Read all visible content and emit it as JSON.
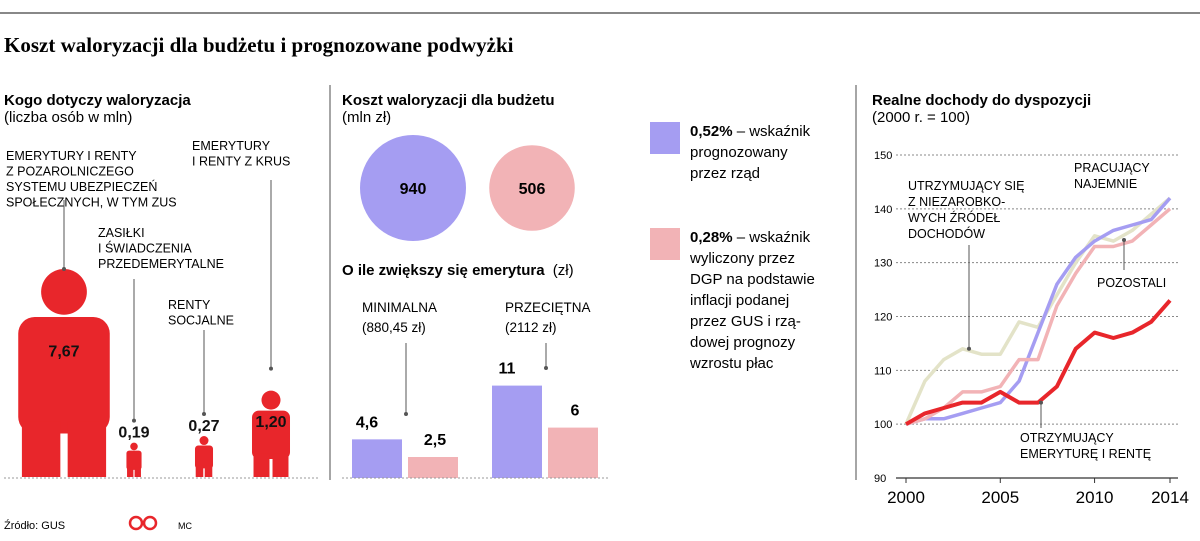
{
  "title": "Koszt waloryzacji dla budżetu i prognozowane podwyżki",
  "source": "Źródło: GUS",
  "logo_text": "©P",
  "author": "MC",
  "colors": {
    "red": "#e8262b",
    "purple": "#a59df2",
    "pink": "#f2b3b6",
    "beige": "#e3e3c8",
    "gray": "#888888"
  },
  "chart_data": [
    {
      "type": "bar",
      "title": "Kogo dotyczy waloryzacja",
      "subtitle": "(liczba osób w mln)",
      "categories": [
        [
          "EMERYTURY I RENTY",
          "Z POZAROLNICZEGO",
          "SYSTEMU UBEZPIECZEŃ",
          "SPOŁECZNYCH, W TYM ZUS"
        ],
        [
          "ZASIŁKI",
          "I ŚWIADCZENIA",
          "PRZEDEMERYTALNE"
        ],
        [
          "RENTY",
          "SOCJALNE"
        ],
        [
          "EMERYTURY",
          "I RENTY Z KRUS"
        ]
      ],
      "values": [
        7.67,
        0.19,
        0.27,
        1.2
      ],
      "value_labels": [
        "7,67",
        "0,19",
        "0,27",
        "1,20"
      ]
    },
    {
      "type": "bubble",
      "title": "Koszt waloryzacji dla budżetu",
      "subtitle": "(mln zł)",
      "values": [
        940,
        506
      ],
      "value_labels": [
        "940",
        "506"
      ]
    },
    {
      "type": "bar",
      "title": "O ile zwiększy się emerytura",
      "title_unit": "(zł)",
      "categories": [
        [
          "MINIMALNA",
          "(880,45 zł)"
        ],
        [
          "PRZECIĘTNA",
          "(2112 zł)"
        ]
      ],
      "series": [
        {
          "values": [
            4.6,
            11
          ],
          "labels": [
            "4,6",
            "11"
          ]
        },
        {
          "values": [
            2.5,
            6
          ],
          "labels": [
            "2,5",
            "6"
          ]
        }
      ],
      "legend": [
        {
          "bold": "0,52%",
          "text": [
            " – wskaźnik",
            "prognozowany",
            "przez rząd"
          ]
        },
        {
          "bold": "0,28%",
          "text": [
            " – wskaźnik",
            "wyliczony przez",
            "DGP na podstawie",
            "inflacji podanej",
            "przez GUS i rzą-",
            "dowej prognozy",
            "wzrostu płac"
          ]
        }
      ]
    },
    {
      "type": "line",
      "title": "Realne dochody do dyspozycji",
      "subtitle": "(2000 r. = 100)",
      "x": [
        2000,
        2001,
        2002,
        2003,
        2004,
        2005,
        2006,
        2007,
        2008,
        2009,
        2010,
        2011,
        2012,
        2013,
        2014
      ],
      "xticks": [
        2000,
        2005,
        2010,
        2014
      ],
      "yticks": [
        90,
        100,
        110,
        120,
        130,
        140,
        150
      ],
      "ylim": [
        90,
        150
      ],
      "grid": true,
      "series": [
        {
          "name": [
            "UTRZYMUJĄCY SIĘ",
            "Z NIEZAROBKO-",
            "WYCH ŹRÓDEŁ",
            "DOCHODÓW"
          ],
          "values": [
            100,
            108,
            112,
            114,
            113,
            113,
            119,
            118,
            124,
            130,
            135,
            134,
            136,
            139,
            142
          ]
        },
        {
          "name": [
            "PRACUJĄCY",
            "NAJEMNIE"
          ],
          "values": [
            100,
            101,
            101,
            102,
            103,
            104,
            108,
            117,
            126,
            131,
            134,
            136,
            137,
            138,
            142
          ]
        },
        {
          "name": [
            "POZOSTALI"
          ],
          "values": [
            100,
            101,
            103,
            106,
            106,
            107,
            112,
            112,
            122,
            128,
            133,
            133,
            134,
            137,
            140
          ]
        },
        {
          "name": [
            "OTRZYMUJĄCY",
            "EMERYTURĘ I RENTĘ"
          ],
          "values": [
            100,
            102,
            103,
            104,
            104,
            106,
            104,
            104,
            107,
            114,
            117,
            116,
            117,
            119,
            123
          ]
        }
      ]
    }
  ]
}
